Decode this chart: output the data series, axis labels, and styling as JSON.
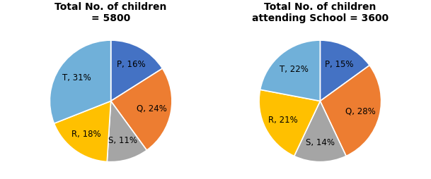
{
  "chart1": {
    "title": "Total No. of children\n= 5800",
    "labels": [
      "P",
      "Q",
      "S",
      "R",
      "T"
    ],
    "values": [
      16,
      24,
      11,
      18,
      31
    ],
    "colors": [
      "#4472C4",
      "#ED7D31",
      "#A5A5A5",
      "#FFC000",
      "#70B0D9"
    ],
    "label_texts": [
      "P, 16%",
      "Q, 24%",
      "S, 11%",
      "R, 18%",
      "T, 31%"
    ]
  },
  "chart2": {
    "title": "Total No. of children\nattending School = 3600",
    "labels": [
      "P",
      "Q",
      "S",
      "R",
      "T"
    ],
    "values": [
      15,
      28,
      14,
      21,
      22
    ],
    "colors": [
      "#4472C4",
      "#ED7D31",
      "#A5A5A5",
      "#FFC000",
      "#70B0D9"
    ],
    "label_texts": [
      "P, 15%",
      "Q, 28%",
      "S, 14%",
      "R, 21%",
      "T, 22%"
    ]
  },
  "background_color": "#FFFFFF",
  "title_fontsize": 10,
  "label_fontsize": 8.5,
  "startangle": 90
}
